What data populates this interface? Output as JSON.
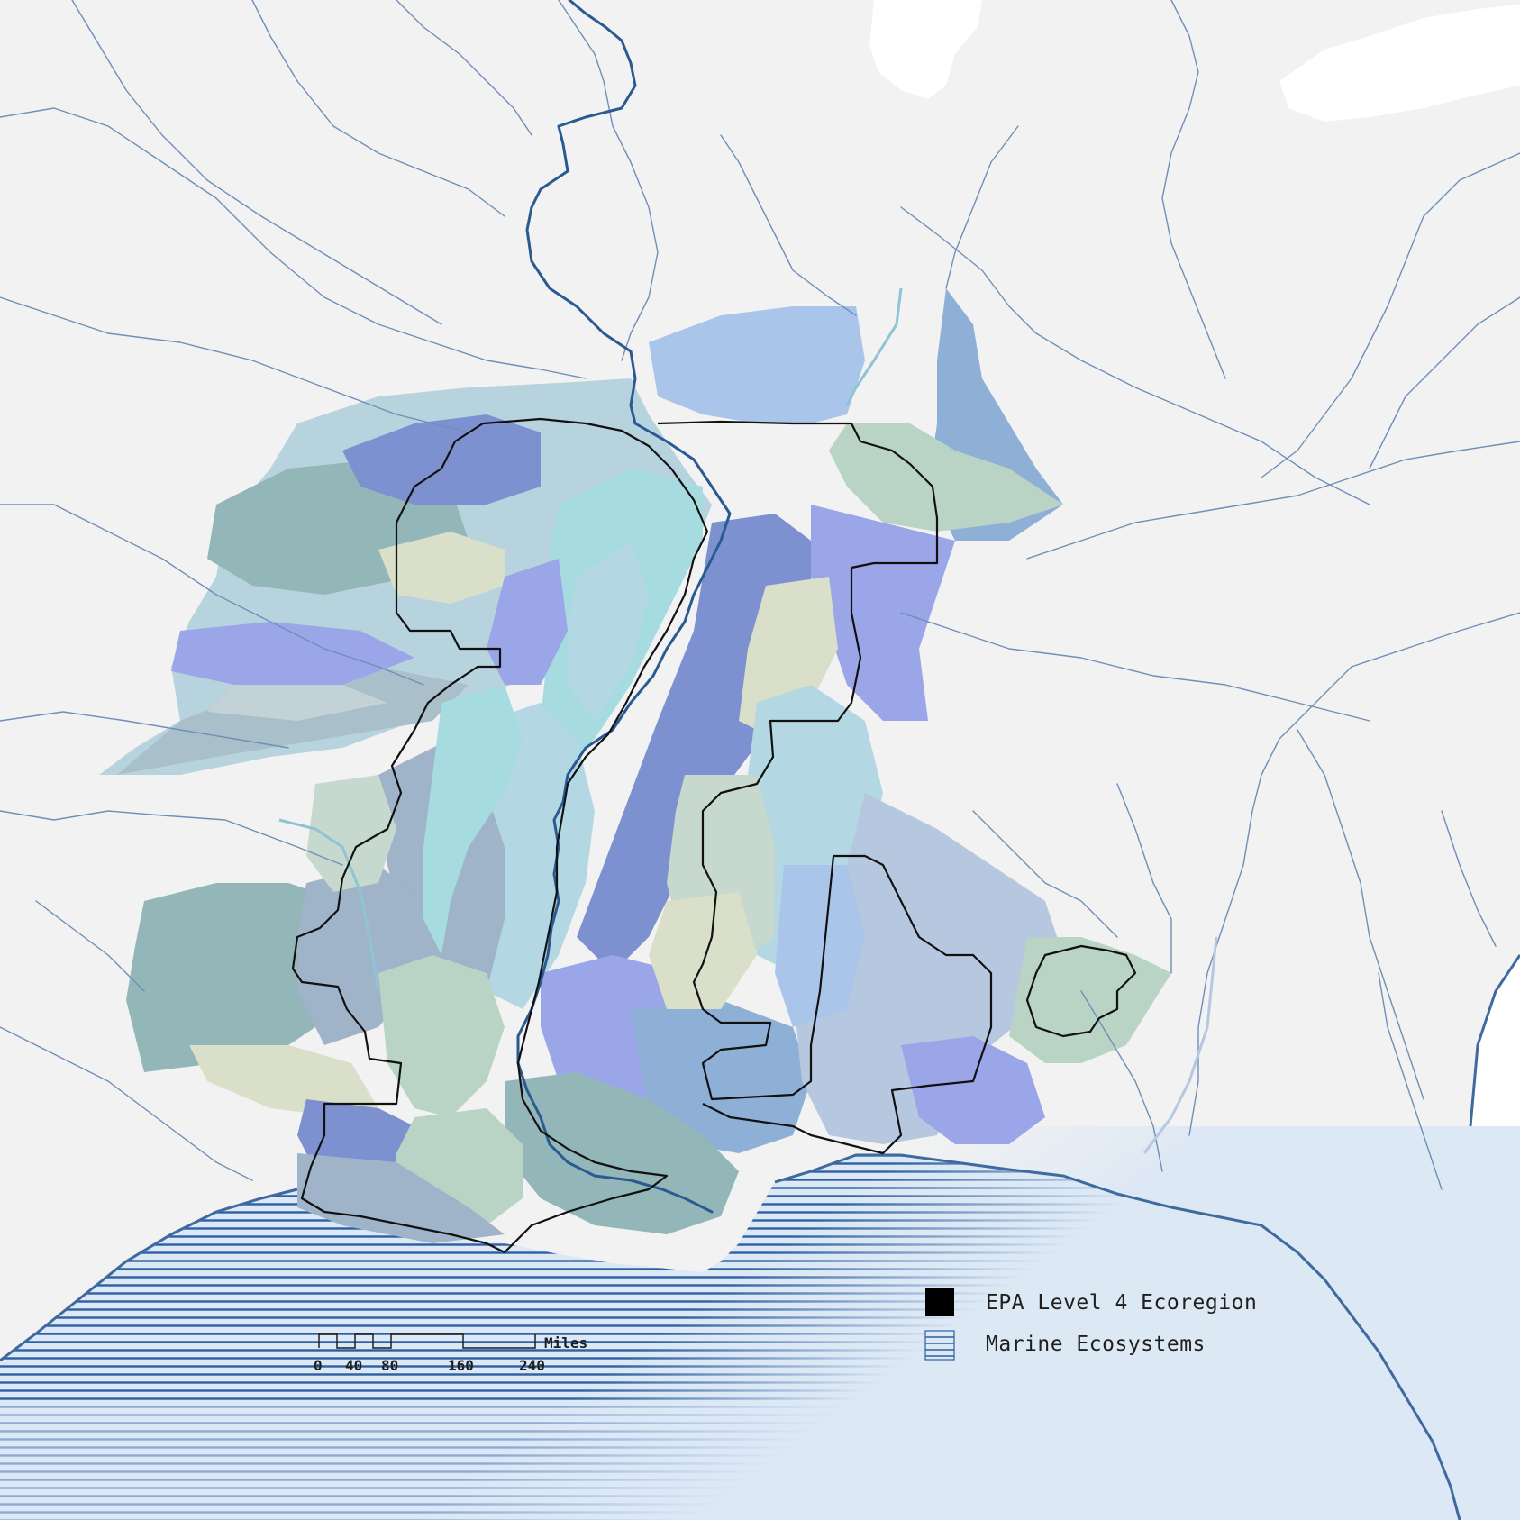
{
  "legend": {
    "items": [
      {
        "label": "EPA Level 4 Ecoregion",
        "swatch": "solid",
        "color": "#000000"
      },
      {
        "label": "Marine Ecosystems",
        "swatch": "stripes",
        "color": "#2c5fa3"
      }
    ]
  },
  "scale_bar": {
    "unit": "Miles",
    "ticks": [
      "0",
      "40",
      "80",
      "160",
      "240"
    ]
  },
  "colors": {
    "land": "#f2f2f2",
    "water_lake": "#ffffff",
    "gulf_water": "#dde8f5",
    "river": "#6f8fb8",
    "mississippi": "#2a5a92",
    "ecoregion_outline": "#111111",
    "marine_hatch": "#2c5fa3",
    "ecoregion_palette": [
      "#a9c6ea",
      "#8fb0d6",
      "#7d90cf",
      "#9aa6e8",
      "#b3d7e3",
      "#a6dbe0",
      "#93b6b8",
      "#b9d3c5",
      "#d9dfc8",
      "#c7d9cf",
      "#9fb3c9",
      "#b6c7e0"
    ]
  }
}
